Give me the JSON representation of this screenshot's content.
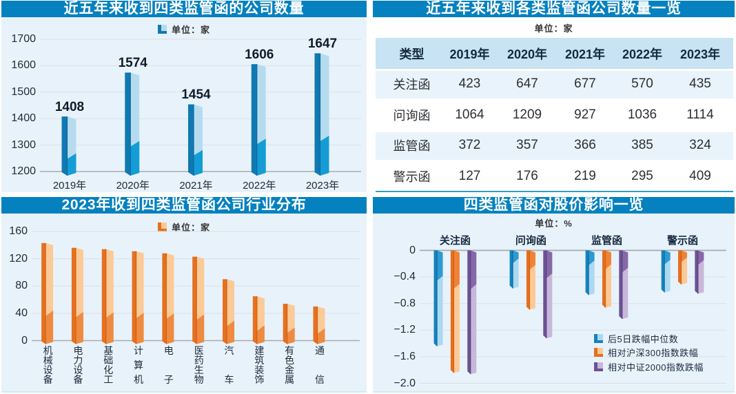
{
  "colors": {
    "title_bar": "#0581bf",
    "panel_bg": "#e8f2fa",
    "grid_light": "#dcdfe4",
    "grid_axis": "#a8abb0",
    "axis_text": "#1c2b3c",
    "unit_text": "#333333",
    "table_header_bg": "#c7e3f4",
    "table_row_alt_bg": "#e9f3fb",
    "table_bottom_border": "#2f9dc7",
    "bar_blue": {
      "left": "#1179b2",
      "light": "#b5dcee",
      "mid": "#149dd5",
      "edge": "#0e68a0"
    },
    "bar_orange": {
      "left": "#e5711f",
      "light": "#fbca96",
      "mid": "#ee8b41",
      "edge": "#d2601a"
    },
    "impact_blue": {
      "left": "#1583bd",
      "light": "#abd9ef",
      "mid": "#2d9bd0",
      "edge": "#0f6ca5"
    },
    "impact_orange": {
      "left": "#e6701e",
      "light": "#fbc994",
      "mid": "#ef8335",
      "edge": "#d2601a"
    },
    "impact_purple": {
      "left": "#6c5294",
      "light": "#c7b7d9",
      "mid": "#8668a8",
      "edge": "#5c4480"
    }
  },
  "chart_data": [
    {
      "id": "yearly_total",
      "type": "bar",
      "title": "近五年来收到四类监管函的公司数量",
      "unit": "单位：家",
      "categories": [
        "2019年",
        "2020年",
        "2021年",
        "2022年",
        "2023年"
      ],
      "values": [
        1408,
        1574,
        1454,
        1606,
        1647
      ],
      "ylim": [
        1200,
        1700
      ],
      "yticks": [
        1700,
        1600,
        1500,
        1400,
        1300,
        1200
      ],
      "data_labels": [
        "1408",
        "1574",
        "1454",
        "1606",
        "1647"
      ],
      "grid": true,
      "palette": "bar_blue"
    },
    {
      "id": "by_type_table",
      "type": "table",
      "title": "近五年来收到各类监管函公司数量一览",
      "unit": "单位：家",
      "columns": [
        "类型",
        "2019年",
        "2020年",
        "2021年",
        "2022年",
        "2023年"
      ],
      "rows": [
        [
          "关注函",
          "423",
          "647",
          "677",
          "570",
          "435"
        ],
        [
          "问询函",
          "1064",
          "1209",
          "927",
          "1036",
          "1114"
        ],
        [
          "监管函",
          "372",
          "357",
          "366",
          "385",
          "324"
        ],
        [
          "警示函",
          "127",
          "176",
          "219",
          "295",
          "409"
        ]
      ]
    },
    {
      "id": "industry_2023",
      "type": "bar",
      "title": "2023年收到四类监管函公司行业分布",
      "unit": "单位：家",
      "categories": [
        "机械设备",
        "电力设备",
        "基础化工",
        "计算机",
        "电子",
        "医药生物",
        "汽车",
        "建筑装饰",
        "有色金属",
        "通信"
      ],
      "values": [
        143,
        136,
        134,
        131,
        128,
        123,
        90,
        65,
        54,
        50
      ],
      "ylim": [
        0,
        160
      ],
      "yticks": [
        160,
        120,
        80,
        40,
        0
      ],
      "grid": true,
      "palette": "bar_orange"
    },
    {
      "id": "price_impact",
      "type": "grouped_bar",
      "title": "四类监管函对股价影响一览",
      "unit": "单位：%",
      "categories": [
        "关注函",
        "问询函",
        "监管函",
        "警示函"
      ],
      "series": [
        {
          "name": "后5日跌幅中位数",
          "palette": "impact_blue",
          "values": [
            -1.4,
            -0.53,
            -0.63,
            -0.59
          ]
        },
        {
          "name": "相对沪深300指数跌幅",
          "palette": "impact_orange",
          "values": [
            -1.8,
            -0.85,
            -0.82,
            -0.47
          ]
        },
        {
          "name": "相对中证2000指数跌幅",
          "palette": "impact_purple",
          "values": [
            -1.82,
            -1.28,
            -0.99,
            -0.61
          ]
        }
      ],
      "ylim": [
        -2.0,
        0
      ],
      "yticks": [
        "0",
        "−0.4",
        "−0.8",
        "−1.2",
        "−1.6",
        "−2.0"
      ],
      "grid": true,
      "legend_position": "bottom-right"
    }
  ]
}
